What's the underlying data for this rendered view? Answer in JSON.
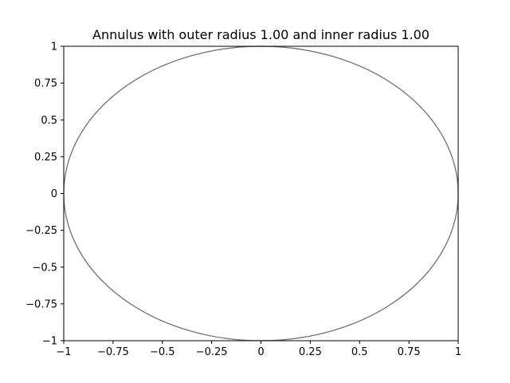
{
  "chart_data": {
    "type": "line",
    "title": "Annulus with outer radius 1.00 and inner radius 1.00",
    "xlabel": "",
    "ylabel": "",
    "xlim": [
      -1,
      1
    ],
    "ylim": [
      -1,
      1
    ],
    "grid": false,
    "outer_radius": 1.0,
    "inner_radius": 1.0,
    "center": [
      0,
      0
    ],
    "stroke_color": "#777777",
    "xticks": [
      {
        "value": -1,
        "label": "−1"
      },
      {
        "value": -0.75,
        "label": "−0.75"
      },
      {
        "value": -0.5,
        "label": "−0.5"
      },
      {
        "value": -0.25,
        "label": "−0.25"
      },
      {
        "value": 0,
        "label": "0"
      },
      {
        "value": 0.25,
        "label": "0.25"
      },
      {
        "value": 0.5,
        "label": "0.5"
      },
      {
        "value": 0.75,
        "label": "0.75"
      },
      {
        "value": 1,
        "label": "1"
      }
    ],
    "yticks": [
      {
        "value": 1,
        "label": "1"
      },
      {
        "value": 0.75,
        "label": "0.75"
      },
      {
        "value": 0.5,
        "label": "0.5"
      },
      {
        "value": 0.25,
        "label": "0.25"
      },
      {
        "value": 0,
        "label": "0"
      },
      {
        "value": -0.25,
        "label": "−0.25"
      },
      {
        "value": -0.5,
        "label": "−0.5"
      },
      {
        "value": -0.75,
        "label": "−0.75"
      },
      {
        "value": -1,
        "label": "−1"
      }
    ]
  }
}
